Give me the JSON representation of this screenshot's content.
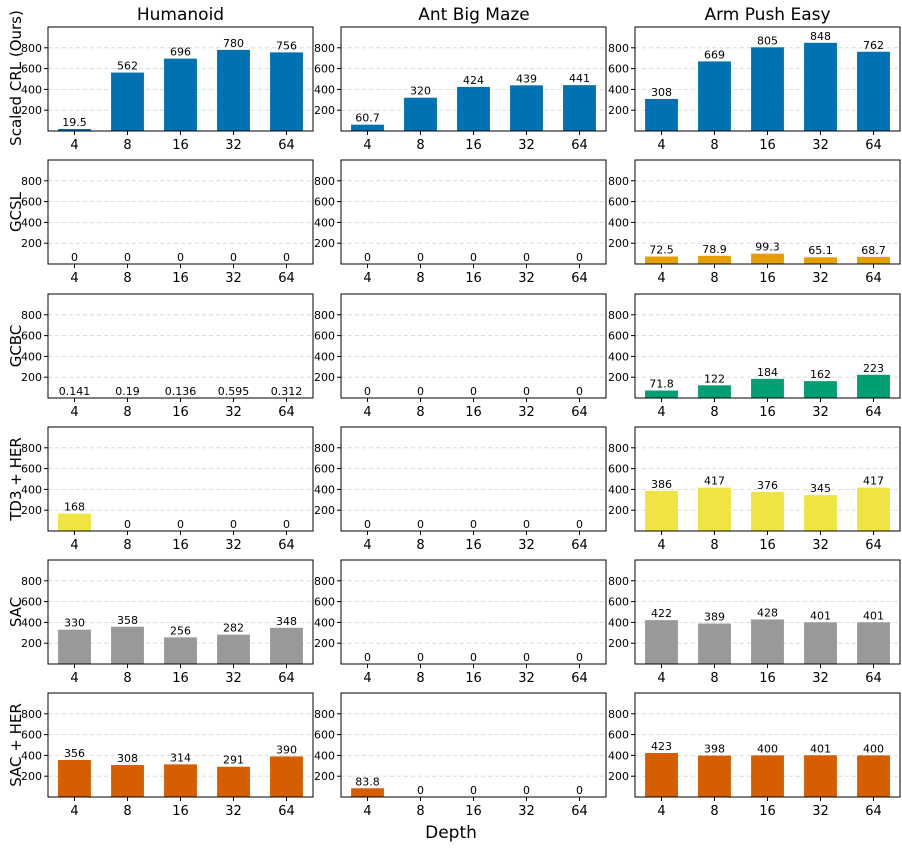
{
  "figure": {
    "column_titles": [
      "Humanoid",
      "Ant Big Maze",
      "Arm Push Easy"
    ],
    "row_labels": [
      "Scaled CRL (Ours)",
      "GCSL",
      "GCBC",
      "TD3 + HER",
      "SAC",
      "SAC + HER"
    ],
    "xlabel": "Depth"
  },
  "chart_data": {
    "type": "bar",
    "categories": [
      "4",
      "8",
      "16",
      "32",
      "64"
    ],
    "ylim": [
      0,
      1000
    ],
    "yticks": [
      200,
      400,
      600,
      800
    ],
    "grid": true,
    "row_colors": [
      "#0072b2",
      "#e69f00",
      "#009e73",
      "#f0e442",
      "#999999",
      "#d55e00"
    ],
    "panels": [
      [
        {
          "values": [
            19.5,
            562,
            696,
            780,
            756
          ],
          "labels": [
            "19.5",
            "562",
            "696",
            "780",
            "756"
          ]
        },
        {
          "values": [
            60.7,
            320,
            424,
            439,
            441
          ],
          "labels": [
            "60.7",
            "320",
            "424",
            "439",
            "441"
          ]
        },
        {
          "values": [
            308,
            669,
            805,
            848,
            762
          ],
          "labels": [
            "308",
            "669",
            "805",
            "848",
            "762"
          ]
        }
      ],
      [
        {
          "values": [
            0,
            0,
            0,
            0,
            0
          ],
          "labels": [
            "0",
            "0",
            "0",
            "0",
            "0"
          ]
        },
        {
          "values": [
            0,
            0,
            0,
            0,
            0
          ],
          "labels": [
            "0",
            "0",
            "0",
            "0",
            "0"
          ]
        },
        {
          "values": [
            72.5,
            78.9,
            99.3,
            65.1,
            68.7
          ],
          "labels": [
            "72.5",
            "78.9",
            "99.3",
            "65.1",
            "68.7"
          ]
        }
      ],
      [
        {
          "values": [
            0.141,
            0.19,
            0.136,
            0.595,
            0.312
          ],
          "labels": [
            "0.141",
            "0.19",
            "0.136",
            "0.595",
            "0.312"
          ]
        },
        {
          "values": [
            0,
            0,
            0,
            0,
            0
          ],
          "labels": [
            "0",
            "0",
            "0",
            "0",
            "0"
          ]
        },
        {
          "values": [
            71.8,
            122,
            184,
            162,
            223
          ],
          "labels": [
            "71.8",
            "122",
            "184",
            "162",
            "223"
          ]
        }
      ],
      [
        {
          "values": [
            168,
            0,
            0,
            0,
            0
          ],
          "labels": [
            "168",
            "0",
            "0",
            "0",
            "0"
          ]
        },
        {
          "values": [
            0,
            0,
            0,
            0,
            0
          ],
          "labels": [
            "0",
            "0",
            "0",
            "0",
            "0"
          ]
        },
        {
          "values": [
            386,
            417,
            376,
            345,
            417
          ],
          "labels": [
            "386",
            "417",
            "376",
            "345",
            "417"
          ]
        }
      ],
      [
        {
          "values": [
            330,
            358,
            256,
            282,
            348
          ],
          "labels": [
            "330",
            "358",
            "256",
            "282",
            "348"
          ]
        },
        {
          "values": [
            0,
            0,
            0,
            0,
            0
          ],
          "labels": [
            "0",
            "0",
            "0",
            "0",
            "0"
          ]
        },
        {
          "values": [
            422,
            389,
            428,
            401,
            401
          ],
          "labels": [
            "422",
            "389",
            "428",
            "401",
            "401"
          ]
        }
      ],
      [
        {
          "values": [
            356,
            308,
            314,
            291,
            390
          ],
          "labels": [
            "356",
            "308",
            "314",
            "291",
            "390"
          ]
        },
        {
          "values": [
            83.8,
            0,
            0,
            0,
            0
          ],
          "labels": [
            "83.8",
            "0",
            "0",
            "0",
            "0"
          ]
        },
        {
          "values": [
            423,
            398,
            400,
            401,
            400
          ],
          "labels": [
            "423",
            "398",
            "400",
            "401",
            "400"
          ]
        }
      ]
    ]
  }
}
